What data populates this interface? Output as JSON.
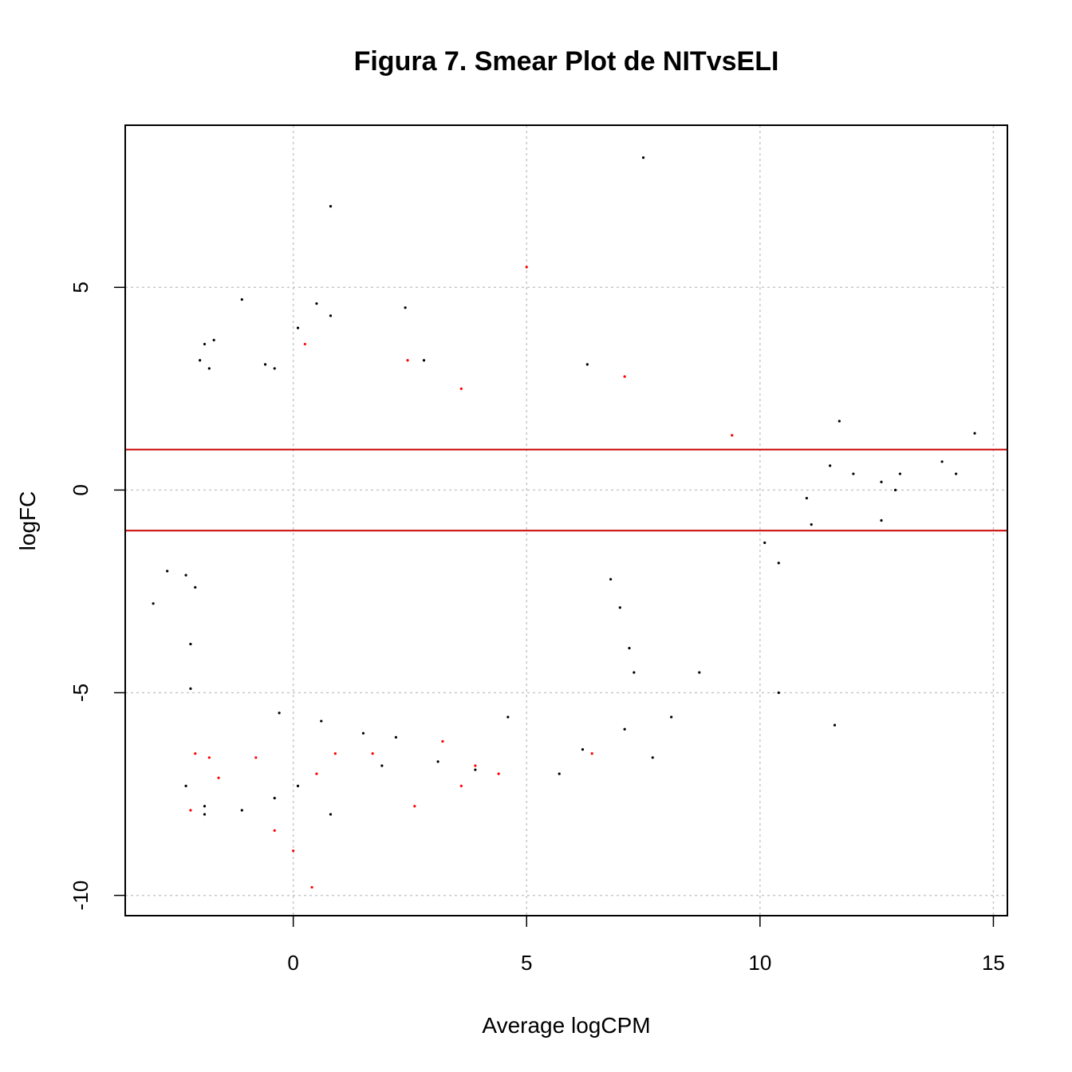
{
  "chart_data": {
    "type": "scatter",
    "title": "Figura 7. Smear Plot de NITvsELI",
    "xlabel": "Average logCPM",
    "ylabel": "logFC",
    "xlim": [
      -3.6,
      15.3
    ],
    "ylim": [
      -10.5,
      9.0
    ],
    "x_ticks": [
      0,
      5,
      10,
      15
    ],
    "y_ticks": [
      -10,
      -5,
      0,
      5
    ],
    "x_tick_labels": [
      "0",
      "5",
      "10",
      "15"
    ],
    "y_tick_labels": [
      "-10",
      "-5",
      "0",
      "5"
    ],
    "grid": true,
    "threshold_lines": [
      1,
      -1
    ],
    "colors": {
      "non_de": "#000000",
      "de": "#ff0000",
      "threshold": "#cc0000",
      "grid": "#c8c8c8"
    },
    "series": [
      {
        "color": "#000000",
        "points": [
          [
            7.5,
            8.2
          ],
          [
            0.8,
            7.0
          ],
          [
            -1.1,
            4.7
          ],
          [
            0.5,
            4.6
          ],
          [
            0.8,
            4.3
          ],
          [
            2.4,
            4.5
          ],
          [
            0.1,
            4.0
          ],
          [
            -1.7,
            3.7
          ],
          [
            -1.9,
            3.6
          ],
          [
            -1.8,
            3.0
          ],
          [
            -2.0,
            3.2
          ],
          [
            -0.6,
            3.1
          ],
          [
            -0.4,
            3.0
          ],
          [
            6.3,
            3.1
          ],
          [
            2.8,
            3.2
          ],
          [
            11.7,
            1.7
          ],
          [
            14.6,
            1.4
          ],
          [
            13.9,
            0.7
          ],
          [
            14.2,
            0.4
          ],
          [
            13.0,
            0.4
          ],
          [
            12.6,
            0.2
          ],
          [
            12.9,
            0.0
          ],
          [
            12.0,
            0.4
          ],
          [
            11.5,
            0.6
          ],
          [
            11.0,
            -0.2
          ],
          [
            12.6,
            -0.75
          ],
          [
            11.1,
            -0.85
          ],
          [
            10.1,
            -1.3
          ],
          [
            10.4,
            -1.8
          ],
          [
            10.4,
            -5.0
          ],
          [
            11.6,
            -5.8
          ],
          [
            8.7,
            -4.5
          ],
          [
            8.1,
            -5.6
          ],
          [
            7.7,
            -6.6
          ],
          [
            7.1,
            -5.9
          ],
          [
            7.2,
            -3.9
          ],
          [
            7.3,
            -4.5
          ],
          [
            7.0,
            -2.9
          ],
          [
            6.8,
            -2.2
          ],
          [
            -3.0,
            -2.8
          ],
          [
            -2.7,
            -2.0
          ],
          [
            -2.3,
            -2.1
          ],
          [
            -2.1,
            -2.4
          ],
          [
            -2.2,
            -3.8
          ],
          [
            -2.2,
            -4.9
          ],
          [
            -2.3,
            -7.3
          ],
          [
            -1.9,
            -8.0
          ],
          [
            -1.9,
            -7.8
          ],
          [
            -1.1,
            -7.9
          ],
          [
            -0.4,
            -7.6
          ],
          [
            0.1,
            -7.3
          ],
          [
            0.8,
            -8.0
          ],
          [
            1.9,
            -6.8
          ],
          [
            3.1,
            -6.7
          ],
          [
            4.6,
            -5.6
          ],
          [
            5.7,
            -7.0
          ],
          [
            6.2,
            -6.4
          ],
          [
            3.9,
            -6.9
          ],
          [
            2.2,
            -6.1
          ],
          [
            1.5,
            -6.0
          ],
          [
            0.6,
            -5.7
          ],
          [
            -0.3,
            -5.5
          ]
        ]
      },
      {
        "color": "#ff0000",
        "points": [
          [
            5.0,
            5.5
          ],
          [
            0.25,
            3.6
          ],
          [
            2.45,
            3.2
          ],
          [
            3.6,
            2.5
          ],
          [
            7.1,
            2.8
          ],
          [
            9.4,
            1.35
          ],
          [
            0.4,
            -9.8
          ],
          [
            0.0,
            -8.9
          ],
          [
            -0.4,
            -8.4
          ],
          [
            -2.2,
            -7.9
          ],
          [
            2.6,
            -7.8
          ],
          [
            3.6,
            -7.3
          ],
          [
            4.4,
            -7.0
          ],
          [
            6.4,
            -6.5
          ],
          [
            3.9,
            -6.8
          ],
          [
            -1.6,
            -7.1
          ],
          [
            -2.1,
            -6.5
          ],
          [
            -1.8,
            -6.6
          ],
          [
            -0.8,
            -6.6
          ],
          [
            0.5,
            -7.0
          ],
          [
            0.9,
            -6.5
          ],
          [
            1.7,
            -6.5
          ],
          [
            3.2,
            -6.2
          ]
        ]
      }
    ]
  }
}
